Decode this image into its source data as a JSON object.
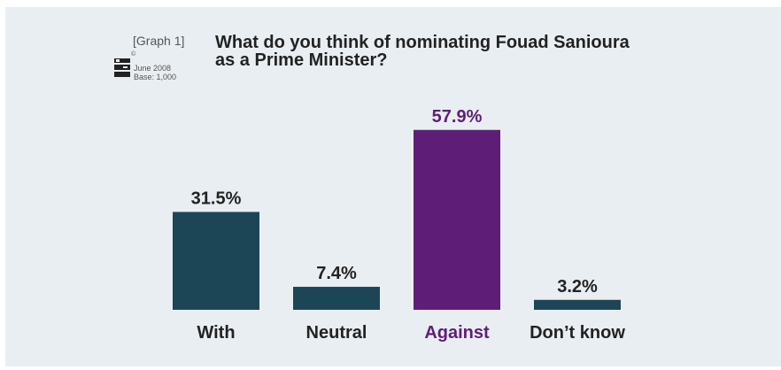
{
  "header": {
    "graph_label": "[Graph 1]",
    "logo_text": "INFO PRO",
    "copyright": "©",
    "date": "June 2008",
    "base": "Base: 1,000",
    "title_line1": "What do you think of nominating Fouad Sanioura",
    "title_line2": "as a Prime Minister?"
  },
  "colors": {
    "panel": "#e9eef2",
    "bar_default": "#1c4656",
    "bar_highlight": "#5e1e77",
    "text_default": "#222222"
  },
  "chart_data": {
    "type": "bar",
    "categories": [
      "With",
      "Neutral",
      "Against",
      "Don’t know"
    ],
    "values": [
      31.5,
      7.4,
      57.9,
      3.2
    ],
    "value_labels": [
      "31.5%",
      "7.4%",
      "57.9%",
      "3.2%"
    ],
    "highlight_index": 2,
    "ylim": [
      0,
      100
    ],
    "grid": false,
    "legend": "none"
  }
}
